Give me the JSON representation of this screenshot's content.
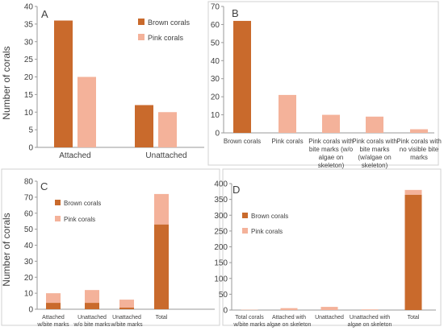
{
  "figure": {
    "ylabel_top": "Number of corals",
    "ylabel_bottom": "Number of corals"
  },
  "colors": {
    "brown": "#c96a2c",
    "pink": "#f4b29a",
    "axis": "#9a9a9a",
    "text": "#404040"
  },
  "chart_data": [
    {
      "panel": "A",
      "type": "bar",
      "categories": [
        "Attached",
        "Unattached"
      ],
      "series": [
        {
          "name": "Brown corals",
          "color_key": "brown",
          "values": [
            36,
            12
          ]
        },
        {
          "name": "Pink corals",
          "color_key": "pink",
          "values": [
            20,
            10
          ]
        }
      ],
      "yticks": [
        0,
        5,
        10,
        15,
        20,
        25,
        30,
        35,
        40
      ],
      "ylim": [
        0,
        40
      ],
      "legend": "top-right"
    },
    {
      "panel": "B",
      "type": "bar",
      "categories": [
        [
          "Brown corals"
        ],
        [
          "Pink corals"
        ],
        [
          "Pink corals with",
          "bite marks (w/o",
          "algae on",
          "skeleton)"
        ],
        [
          "Pink corals with",
          "bite marks",
          "(w/algae on",
          "skeleton)"
        ],
        [
          "Pink corals with",
          "no visible bite",
          "marks"
        ]
      ],
      "values": [
        62,
        21,
        10,
        9,
        2
      ],
      "bar_color_keys": [
        "brown",
        "pink",
        "pink",
        "pink",
        "pink"
      ],
      "yticks": [
        0,
        10,
        20,
        30,
        40,
        50,
        60,
        70
      ],
      "ylim": [
        0,
        70
      ]
    },
    {
      "panel": "C",
      "type": "bar",
      "stacked": true,
      "categories": [
        [
          "Attached",
          "w/bite marks"
        ],
        [
          "Unattached",
          "w/o bite marks"
        ],
        [
          "Unattached",
          "w/bite marks"
        ],
        [
          "Total"
        ]
      ],
      "series": [
        {
          "name": "Brown corals",
          "color_key": "brown",
          "values": [
            4,
            4,
            1,
            53
          ]
        },
        {
          "name": "Pink corals",
          "color_key": "pink",
          "values": [
            6,
            8,
            5,
            19
          ]
        }
      ],
      "yticks": [
        0,
        10,
        20,
        30,
        40,
        50,
        60,
        70,
        80
      ],
      "ylim": [
        0,
        80
      ],
      "legend": "top-left"
    },
    {
      "panel": "D",
      "type": "bar",
      "stacked": true,
      "categories": [
        [
          "Total corals",
          "w/bite marks"
        ],
        [
          "Attached with",
          "algae on skeleton"
        ],
        [
          "Unattached"
        ],
        [
          "Unattached with",
          "algae on skeleton"
        ],
        [
          "Total"
        ]
      ],
      "series": [
        {
          "name": "Brown corals",
          "color_key": "brown",
          "values": [
            0,
            0,
            0,
            0,
            365
          ]
        },
        {
          "name": "Pink corals",
          "color_key": "pink",
          "values": [
            1,
            6,
            10,
            2,
            15
          ]
        }
      ],
      "yticks": [
        0,
        50,
        100,
        150,
        200,
        250,
        300,
        350,
        400
      ],
      "ylim": [
        0,
        400
      ],
      "legend": "left"
    }
  ]
}
